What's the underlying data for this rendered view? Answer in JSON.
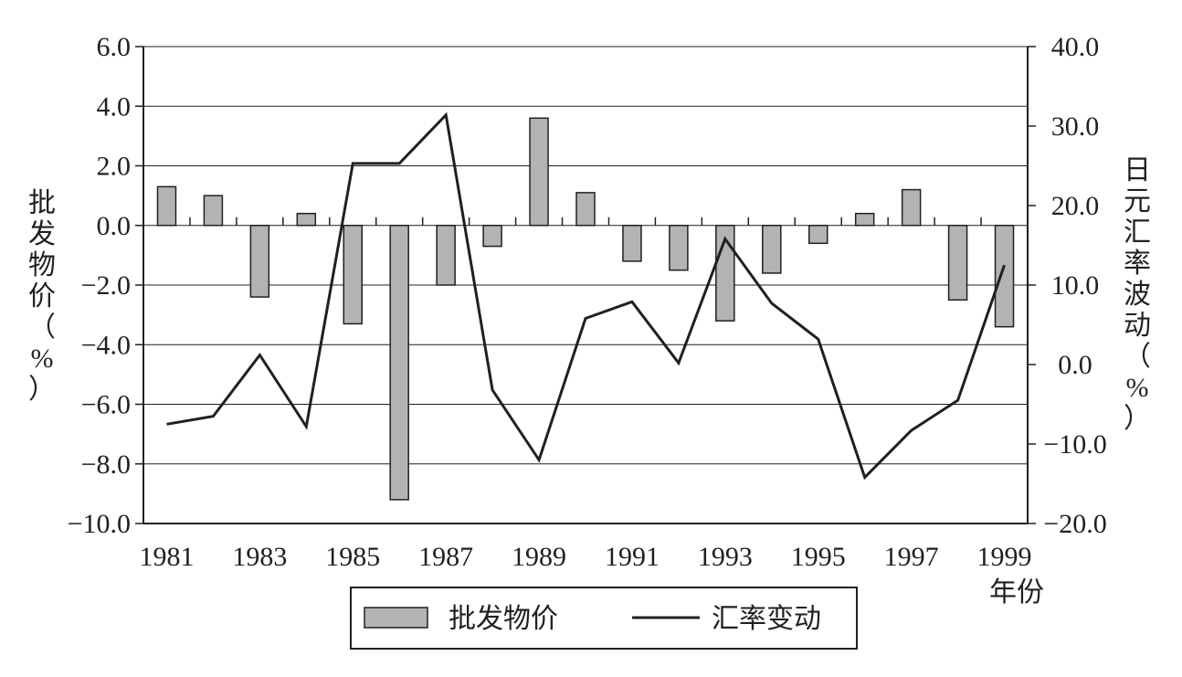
{
  "chart_data": {
    "type": "bar+line",
    "categories": [
      "1981",
      "1982",
      "1983",
      "1984",
      "1985",
      "1986",
      "1987",
      "1988",
      "1989",
      "1990",
      "1991",
      "1992",
      "1993",
      "1994",
      "1995",
      "1996",
      "1997",
      "1998",
      "1999"
    ],
    "x_tick_labels": [
      "1981",
      "1983",
      "1985",
      "1987",
      "1989",
      "1991",
      "1993",
      "1995",
      "1997",
      "1999"
    ],
    "x_unit_label": "年份",
    "series": [
      {
        "name": "批发物价",
        "type": "bar",
        "axis": "left",
        "color": "#b3b3b3",
        "values": [
          1.3,
          1.0,
          -2.4,
          0.4,
          -3.3,
          -9.2,
          -2.0,
          -0.7,
          3.6,
          1.1,
          -1.2,
          -1.5,
          -3.2,
          -1.6,
          -0.6,
          0.4,
          1.2,
          -2.5,
          -3.4
        ]
      },
      {
        "name": "汇率变动",
        "type": "line",
        "axis": "right",
        "color": "#231f20",
        "values": [
          -7.5,
          -6.5,
          1.2,
          -7.8,
          25.3,
          25.3,
          31.4,
          -3.2,
          -12.0,
          5.8,
          7.9,
          0.2,
          15.8,
          7.7,
          3.2,
          -14.2,
          -8.3,
          -4.5,
          12.5
        ]
      }
    ],
    "y_left": {
      "label_chars": [
        "批",
        "发",
        "物",
        "价",
        "（",
        "%",
        "）"
      ],
      "range": [
        -10,
        6
      ],
      "ticks": [
        "6.0",
        "4.0",
        "2.0",
        "0.0",
        "−2.0",
        "−4.0",
        "−6.0",
        "−8.0",
        "−10.0"
      ]
    },
    "y_right": {
      "label_chars": [
        "日",
        "元",
        "汇",
        "率",
        "波",
        "动",
        "（",
        "%",
        "）"
      ],
      "range": [
        -20,
        40
      ],
      "ticks": [
        "40.0",
        "30.0",
        "20.0",
        "10.0",
        "0.0",
        "−10.0",
        "−20.0"
      ]
    },
    "grid": "horizontal",
    "legend": "bottom-center"
  }
}
